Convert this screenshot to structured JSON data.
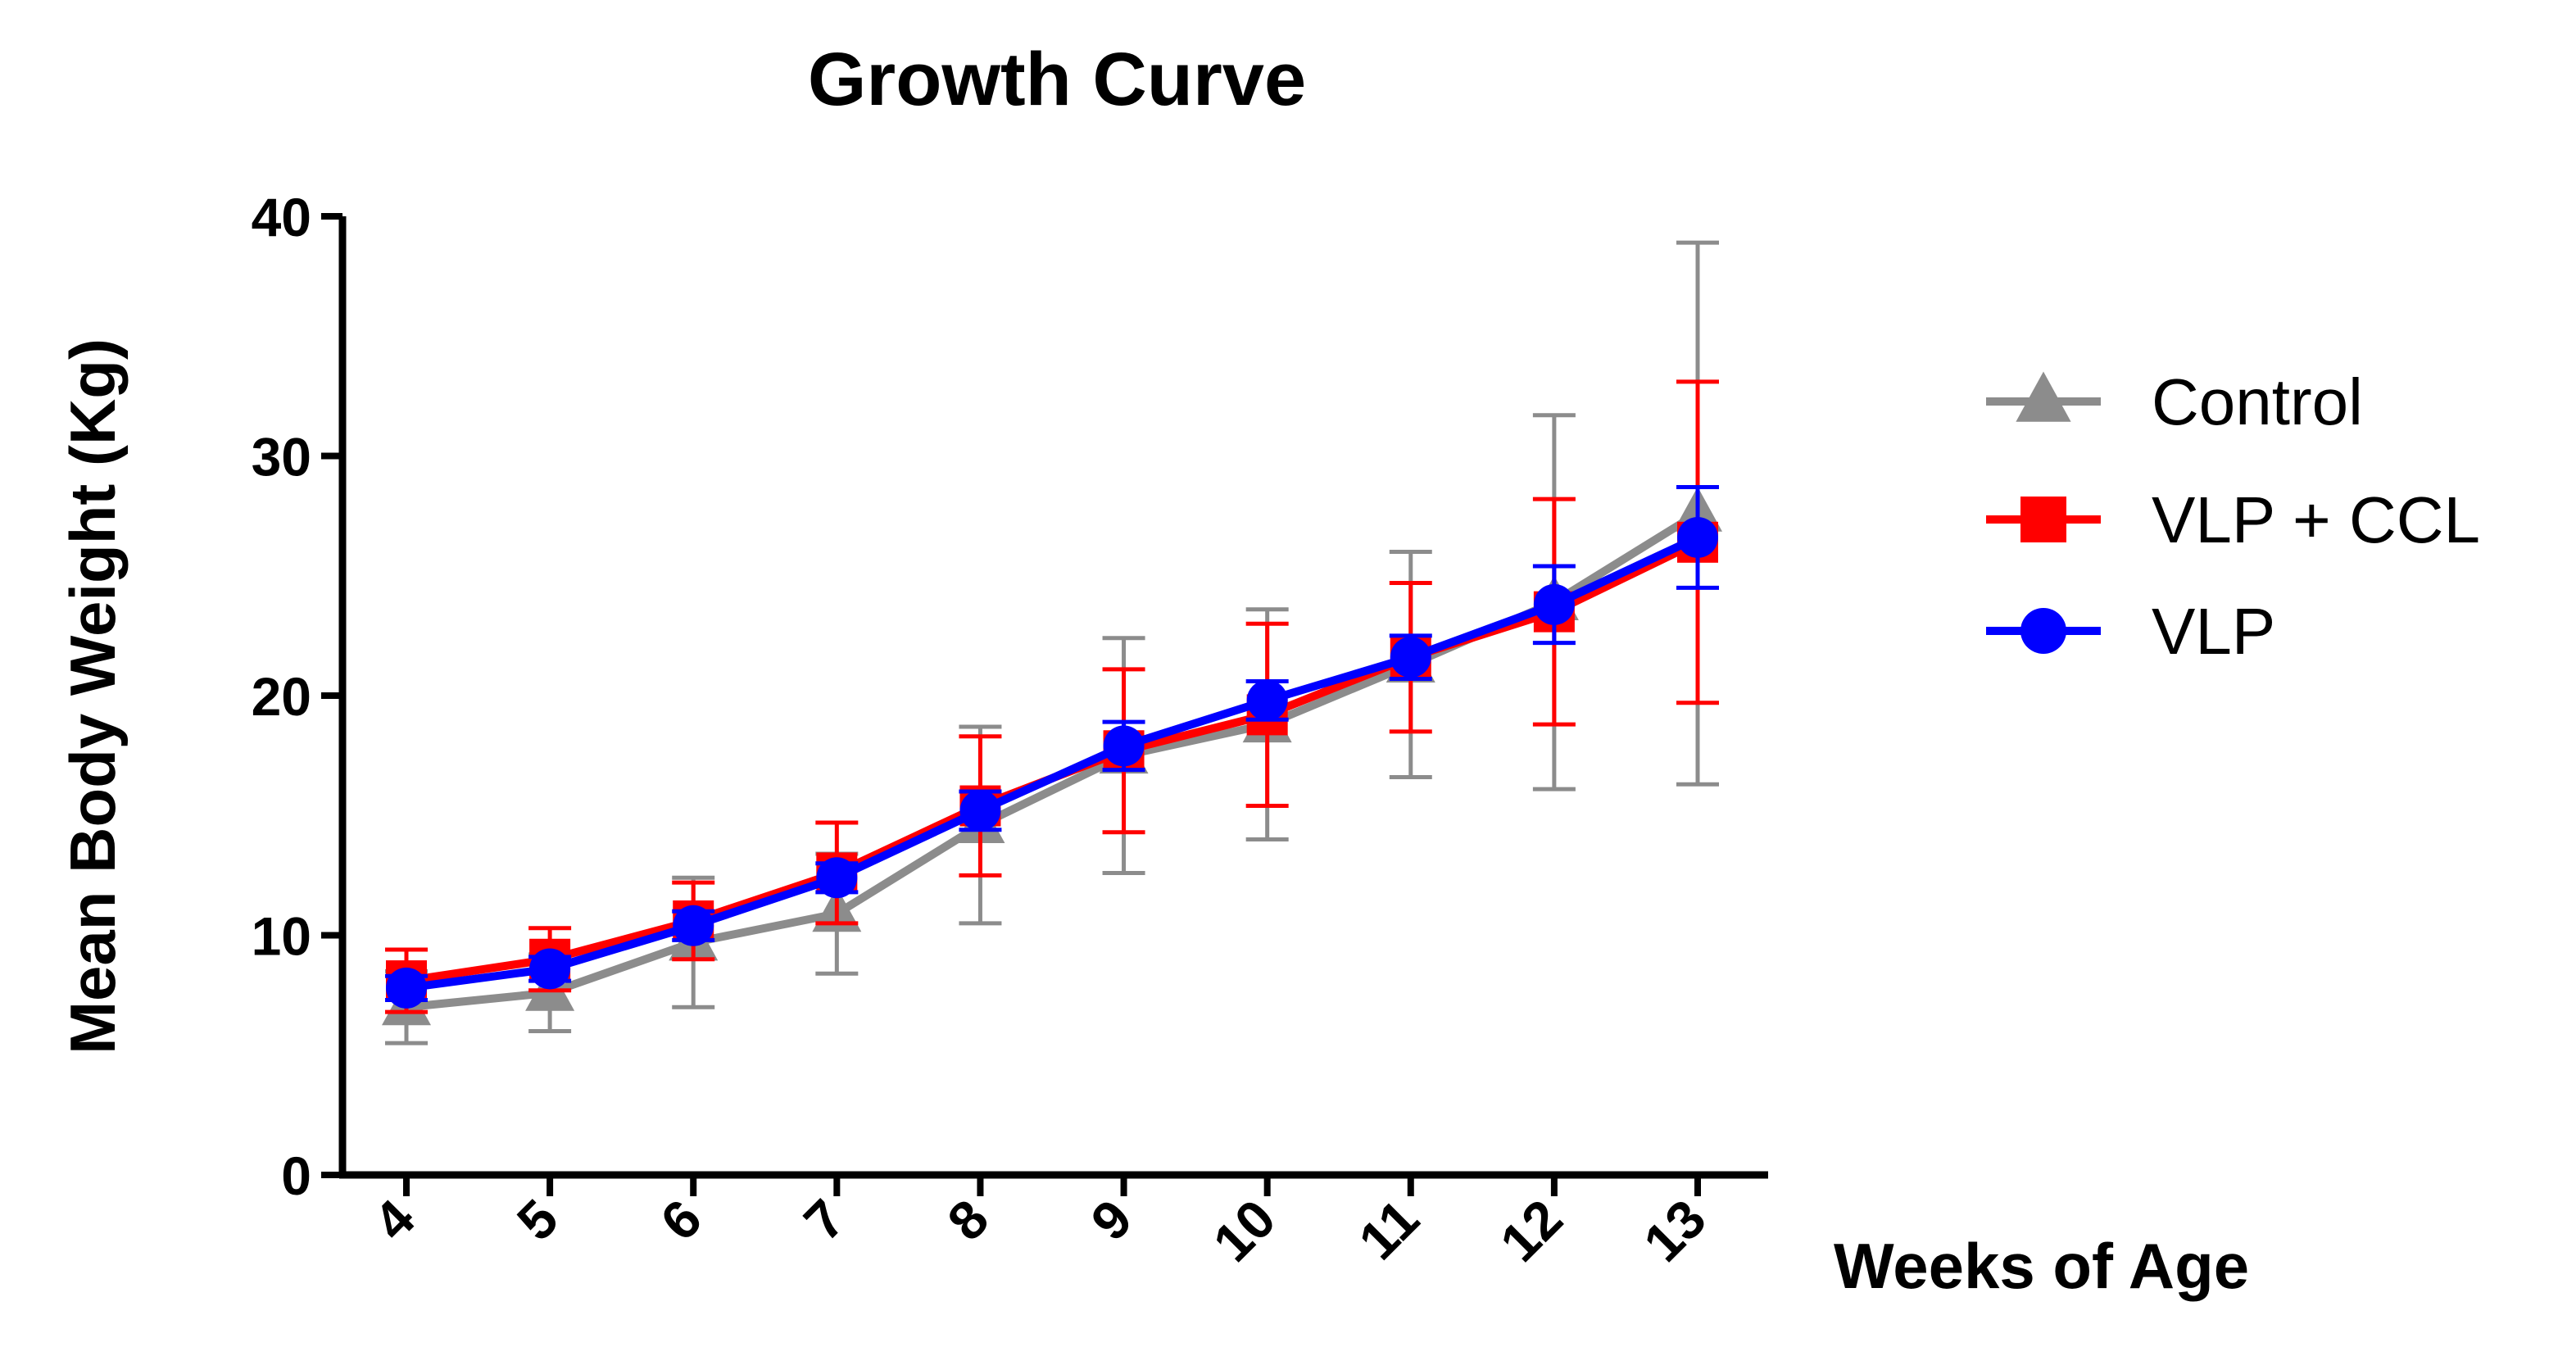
{
  "chart_data": {
    "type": "line",
    "title": "Growth Curve",
    "xlabel": "Weeks of Age",
    "ylabel": "Mean Body Weight (Kg)",
    "ylim": [
      0,
      40
    ],
    "yticks": [
      0,
      10,
      20,
      30,
      40
    ],
    "categories": [
      "4",
      "5",
      "6",
      "7",
      "8",
      "9",
      "10",
      "11",
      "12",
      "13"
    ],
    "grid": false,
    "legend_position": "right",
    "series": [
      {
        "name": "Control",
        "color": "#8c8c8c",
        "marker": "triangle",
        "values": [
          7.0,
          7.6,
          9.7,
          10.9,
          14.6,
          17.5,
          18.8,
          21.3,
          23.9,
          27.6
        ],
        "errors": [
          1.5,
          1.6,
          2.7,
          2.5,
          4.1,
          4.9,
          4.8,
          4.7,
          7.8,
          11.3
        ]
      },
      {
        "name": "VLP + CCL",
        "color": "#ff0000",
        "marker": "square",
        "values": [
          8.1,
          9.0,
          10.6,
          12.6,
          15.4,
          17.7,
          19.2,
          21.6,
          23.5,
          26.4
        ],
        "errors": [
          1.3,
          1.3,
          1.6,
          2.1,
          2.9,
          3.4,
          3.8,
          3.1,
          4.7,
          6.7
        ]
      },
      {
        "name": "VLP",
        "color": "#0000ff",
        "marker": "circle",
        "values": [
          7.8,
          8.6,
          10.4,
          12.4,
          15.2,
          17.9,
          19.8,
          21.6,
          23.8,
          26.6
        ],
        "errors": [
          0.5,
          0.5,
          0.6,
          0.6,
          0.8,
          1.0,
          0.8,
          0.9,
          1.6,
          2.1
        ]
      }
    ]
  }
}
